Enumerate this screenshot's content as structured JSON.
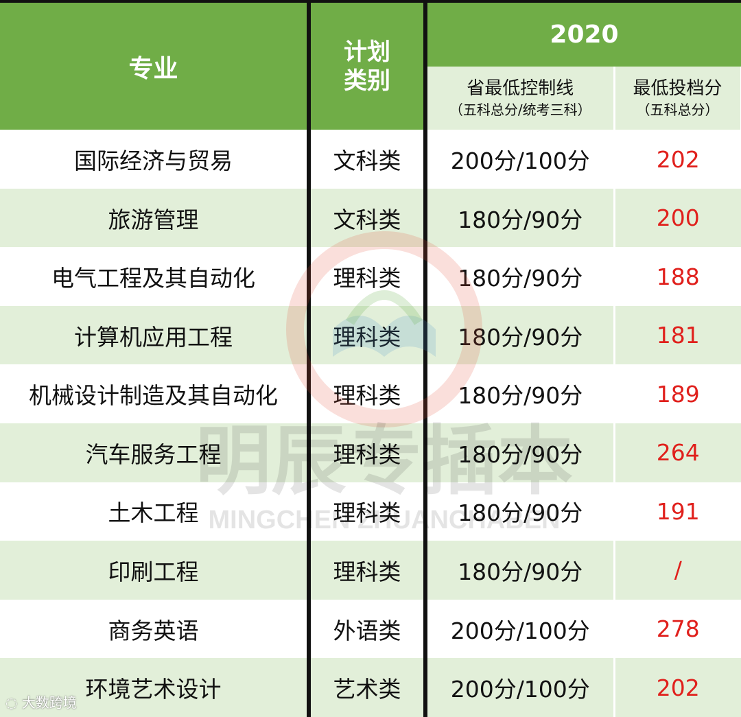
{
  "header": {
    "major": "专业",
    "plan_type_line1": "计划",
    "plan_type_line2": "类别",
    "year": "2020",
    "control_line": "省最低控制线",
    "control_line_note": "（五科总分/统考三科）",
    "min_score": "最低投档分",
    "min_score_note": "（五科总分）"
  },
  "rows": [
    {
      "major": "国际经济与贸易",
      "type": "文科类",
      "control": "200分/100分",
      "score": "202"
    },
    {
      "major": "旅游管理",
      "type": "文科类",
      "control": "180分/90分",
      "score": "200"
    },
    {
      "major": "电气工程及其自动化",
      "type": "理科类",
      "control": "180分/90分",
      "score": "188"
    },
    {
      "major": "计算机应用工程",
      "type": "理科类",
      "control": "180分/90分",
      "score": "181"
    },
    {
      "major": "机械设计制造及其自动化",
      "type": "理科类",
      "control": "180分/90分",
      "score": "189"
    },
    {
      "major": "汽车服务工程",
      "type": "理科类",
      "control": "180分/90分",
      "score": "264"
    },
    {
      "major": "土木工程",
      "type": "理科类",
      "control": "180分/90分",
      "score": "191"
    },
    {
      "major": "印刷工程",
      "type": "理科类",
      "control": "180分/90分",
      "score": "/"
    },
    {
      "major": "商务英语",
      "type": "外语类",
      "control": "200分/100分",
      "score": "278"
    },
    {
      "major": "环境艺术设计",
      "type": "艺术类",
      "control": "200分/100分",
      "score": "202"
    }
  ],
  "watermark": {
    "title": "明辰专插本",
    "subtitle": "MINGCHEN ZHUANCHABEN"
  },
  "footer": {
    "source": "大数跨境"
  },
  "colors": {
    "header_green": "#70ad47",
    "row_alt": "#e2efd9",
    "score_red": "#e0201c"
  }
}
